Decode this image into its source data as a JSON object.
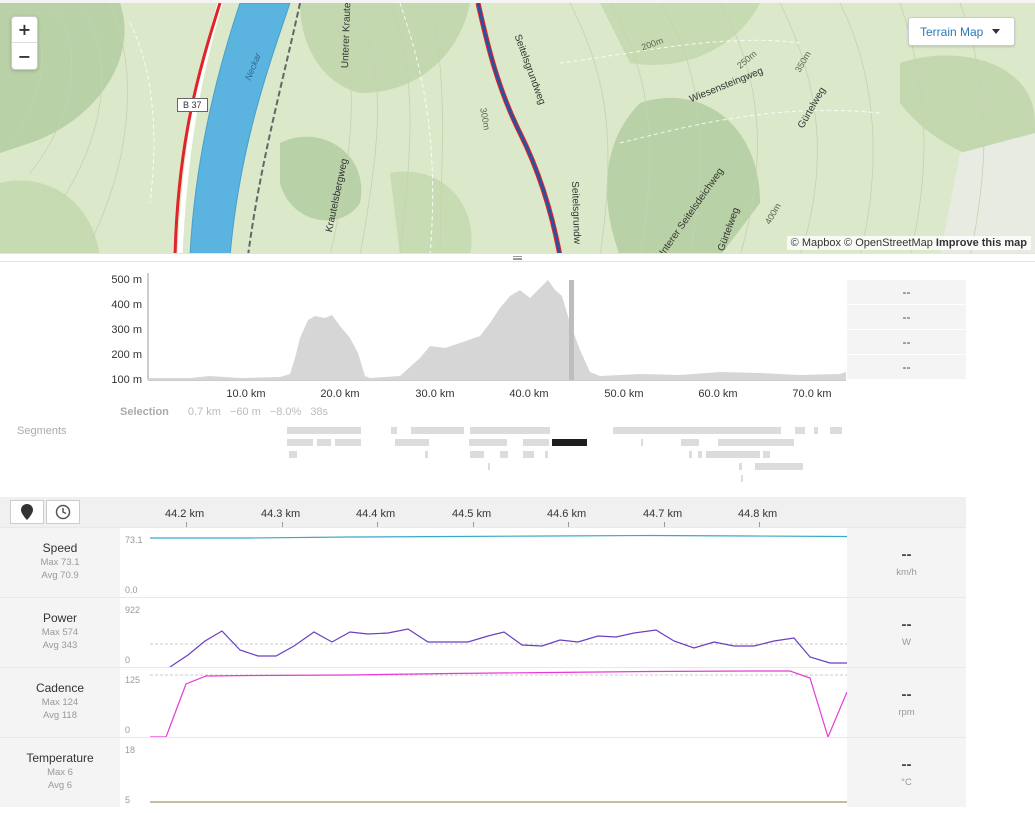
{
  "map": {
    "zoom_in": "+",
    "zoom_out": "−",
    "layer_button": "Terrain Map",
    "attribution_mapbox": "© Mapbox",
    "attribution_osm": "© OpenStreetMap",
    "attribution_improve": "Improve this map",
    "road_shield": "B 37",
    "labels": [
      "Neckar",
      "Seitelsgrundweg",
      "Wiesensteingweg",
      "Gürtelweg",
      "Krautelsbergweg",
      "Unterer Krautelsb",
      "Seitelsgrundw",
      "Unterer Seitelsdeichweg",
      "Gürtelweg",
      "200m",
      "250m",
      "300m",
      "350m",
      "400m"
    ]
  },
  "elevation_chart": {
    "y_ticks": [
      "500 m",
      "400 m",
      "300 m",
      "200 m",
      "100 m"
    ],
    "x_ticks": [
      "10.0 km",
      "20.0 km",
      "30.0 km",
      "40.0 km",
      "50.0 km",
      "60.0 km",
      "70.0 km"
    ],
    "side_values": [
      "--",
      "--",
      "--",
      "--"
    ]
  },
  "selection": {
    "label": "Selection",
    "distance": "0.7 km",
    "elevation": "−60 m",
    "grade": "−8.0%",
    "time": "38s"
  },
  "segments_label": "Segments",
  "stream_axis": {
    "ticks": [
      "44.2 km",
      "44.3 km",
      "44.4 km",
      "44.5 km",
      "44.6 km",
      "44.7 km",
      "44.8 km"
    ]
  },
  "streams": [
    {
      "name": "Speed",
      "max": "Max 73.1",
      "avg": "Avg 70.9",
      "ymax": "73.1",
      "ymin": "0.0",
      "value": "--",
      "unit": "km/h",
      "color": "#3aa9c9"
    },
    {
      "name": "Power",
      "max": "Max 574",
      "avg": "Avg 343",
      "ymax": "922",
      "ymin": "0",
      "value": "--",
      "unit": "W",
      "color": "#6a3fbf"
    },
    {
      "name": "Cadence",
      "max": "Max 124",
      "avg": "Avg 118",
      "ymax": "125",
      "ymin": "0",
      "value": "--",
      "unit": "rpm",
      "color": "#e83ad6"
    },
    {
      "name": "Temperature",
      "max": "Max 6",
      "avg": "Avg 6",
      "ymax": "18",
      "ymin": "5",
      "value": "--",
      "unit": "°C",
      "color": "#b4a97a"
    }
  ],
  "colors": {
    "route_red": "#e0242a",
    "route_blue": "#2c4fa0",
    "river": "#5bb3e0",
    "link": "#2a7ab8"
  },
  "icons": [
    "zoom-in-icon",
    "zoom-out-icon",
    "caret-down-icon",
    "map-pin-icon",
    "clock-icon"
  ]
}
